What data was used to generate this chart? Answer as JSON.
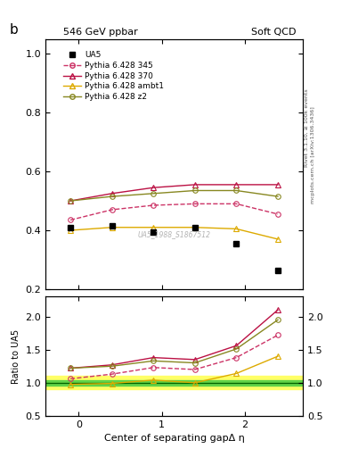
{
  "title_left": "546 GeV ppbar",
  "title_right": "Soft QCD",
  "ylabel_main": "b",
  "ylabel_ratio": "Ratio to UA5",
  "xlabel": "Center of separating gapΔ η",
  "right_label_top": "Rivet 3.1.10, ≥ 100k events",
  "right_label_bottom": "mcplots.cern.ch [arXiv:1306.3436]",
  "watermark": "UA5_1988_S1867512",
  "ua5_x": [
    -0.1,
    0.4,
    0.9,
    1.4,
    1.9,
    2.4
  ],
  "ua5_y": [
    0.41,
    0.415,
    0.395,
    0.41,
    0.355,
    0.265
  ],
  "py345_x": [
    -0.1,
    0.4,
    0.9,
    1.4,
    1.9,
    2.4
  ],
  "py345_y": [
    0.435,
    0.47,
    0.485,
    0.49,
    0.49,
    0.455
  ],
  "py370_x": [
    -0.1,
    0.4,
    0.9,
    1.4,
    1.9,
    2.4
  ],
  "py370_y": [
    0.5,
    0.525,
    0.545,
    0.555,
    0.555,
    0.555
  ],
  "pyambt1_x": [
    -0.1,
    0.4,
    0.9,
    1.4,
    1.9,
    2.4
  ],
  "pyambt1_y": [
    0.4,
    0.41,
    0.41,
    0.41,
    0.405,
    0.37
  ],
  "pyz2_x": [
    -0.1,
    0.4,
    0.9,
    1.4,
    1.9,
    2.4
  ],
  "pyz2_y": [
    0.5,
    0.515,
    0.525,
    0.535,
    0.535,
    0.515
  ],
  "ratio_py345_y": [
    1.06,
    1.13,
    1.23,
    1.2,
    1.38,
    1.72
  ],
  "ratio_py370_y": [
    1.22,
    1.27,
    1.38,
    1.35,
    1.56,
    2.1
  ],
  "ratio_pyambt1_y": [
    0.975,
    0.99,
    1.04,
    1.0,
    1.14,
    1.4
  ],
  "ratio_pyz2_y": [
    1.22,
    1.25,
    1.33,
    1.3,
    1.51,
    1.95
  ],
  "color_ua5": "#000000",
  "color_py345": "#cc3366",
  "color_py370": "#bb1144",
  "color_pyambt1": "#ddaa00",
  "color_pyz2": "#888822",
  "main_ylim": [
    0.2,
    1.05
  ],
  "ratio_ylim": [
    0.5,
    2.3
  ],
  "xlim": [
    -0.4,
    2.7
  ],
  "xticks": [
    0,
    1,
    2
  ],
  "band_yellow_halfwidth": 0.1,
  "band_green_halfwidth": 0.04
}
